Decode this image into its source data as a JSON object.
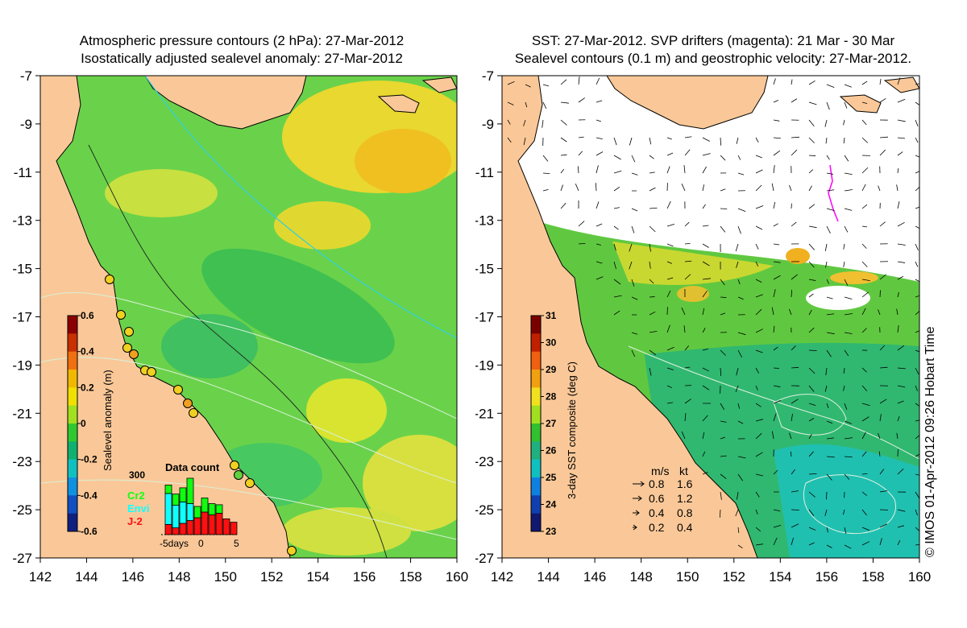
{
  "left_panel": {
    "title_line1": "Atmospheric pressure contours (2 hPa): 27-Mar-2012",
    "title_line2": "Isostatically adjusted sealevel anomaly: 27-Mar-2012",
    "y_ticks": [
      "-7",
      "-9",
      "-11",
      "-13",
      "-15",
      "-17",
      "-19",
      "-21",
      "-23",
      "-25",
      "-27"
    ],
    "x_ticks": [
      "142",
      "144",
      "146",
      "148",
      "150",
      "152",
      "154",
      "156",
      "158",
      "160"
    ],
    "colorbar": {
      "label": "Sealevel anomaly (m)",
      "ticks": [
        "0.6",
        "0.4",
        "0.2",
        "0",
        "-0.2",
        "-0.4",
        "-0.6"
      ],
      "colors": [
        "#8b0000",
        "#c83000",
        "#f07010",
        "#f0b800",
        "#f0e000",
        "#a0e020",
        "#30c830",
        "#10b070",
        "#10c0c0",
        "#1090e0",
        "#1050c0",
        "#102080"
      ]
    },
    "data_count": {
      "title": "Data count",
      "max_label": "300",
      "missions": [
        {
          "name": "Cr2",
          "color": "#10ff10"
        },
        {
          "name": "Envi",
          "color": "#10ffff"
        },
        {
          "name": "J-2",
          "color": "#ff1010"
        }
      ],
      "x_labels": [
        "-5days",
        "0",
        "5"
      ],
      "bars": [
        {
          "j2": 0.18,
          "envi": 0.55,
          "cr2": 0.15
        },
        {
          "j2": 0.12,
          "envi": 0.4,
          "cr2": 0.2
        },
        {
          "j2": 0.2,
          "envi": 0.38,
          "cr2": 0.25
        },
        {
          "j2": 0.25,
          "envi": 0.3,
          "cr2": 0.45
        },
        {
          "j2": 0.3,
          "envi": 0.0,
          "cr2": 0.2
        },
        {
          "j2": 0.4,
          "envi": 0.0,
          "cr2": 0.25
        },
        {
          "j2": 0.35,
          "envi": 0.0,
          "cr2": 0.2
        },
        {
          "j2": 0.38,
          "envi": 0.0,
          "cr2": 0.15
        },
        {
          "j2": 0.28,
          "envi": 0.0,
          "cr2": 0.0
        },
        {
          "j2": 0.22,
          "envi": 0.0,
          "cr2": 0.0
        }
      ]
    },
    "colors": {
      "land": "#fac898",
      "ocean_main": "#50d050",
      "ocean_warm": "#f0d020"
    }
  },
  "right_panel": {
    "title_line1": "SST: 27-Mar-2012. SVP drifters (magenta): 21 Mar - 30 Mar",
    "title_line2": "Sealevel contours (0.1 m) and geostrophic velocity: 27-Mar-2012.",
    "y_ticks": [
      "-7",
      "-9",
      "-11",
      "-13",
      "-15",
      "-17",
      "-19",
      "-21",
      "-23",
      "-25",
      "-27"
    ],
    "x_ticks": [
      "142",
      "144",
      "146",
      "148",
      "150",
      "152",
      "154",
      "156",
      "158",
      "160"
    ],
    "colorbar": {
      "label": "3-day SST composite (deg C)",
      "ticks": [
        "31",
        "30",
        "29",
        "28",
        "27",
        "26",
        "25",
        "24",
        "23"
      ],
      "colors": [
        "#7a0000",
        "#c02000",
        "#f06010",
        "#f0a010",
        "#f0e020",
        "#a0e020",
        "#30c030",
        "#20b080",
        "#10c0c0",
        "#1080e0",
        "#1040b0",
        "#101870"
      ]
    },
    "velocity_legend": {
      "header_ms": "m/s",
      "header_kt": "kt",
      "rows": [
        {
          "ms": "0.8",
          "kt": "1.6"
        },
        {
          "ms": "0.6",
          "kt": "1.2"
        },
        {
          "ms": "0.4",
          "kt": "0.8"
        },
        {
          "ms": "0.2",
          "kt": "0.4"
        }
      ]
    },
    "credit": "© IMOS 01-Apr-2012 09:26 Hobart Time",
    "colors": {
      "land": "#fac898",
      "drifter": "#ff00ff"
    }
  }
}
